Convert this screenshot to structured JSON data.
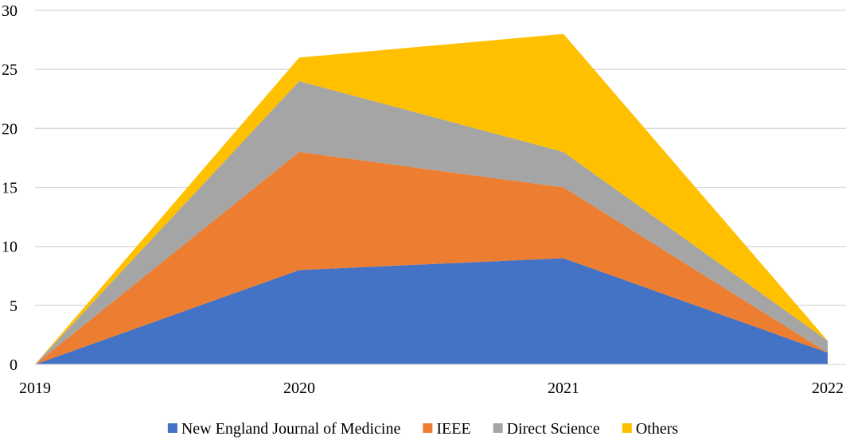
{
  "chart_data": {
    "type": "area",
    "stacked": true,
    "categories": [
      "2019",
      "2020",
      "2021",
      "2022"
    ],
    "series": [
      {
        "name": "New England Journal of Medicine",
        "color": "#4472c4",
        "values": [
          0,
          8,
          9,
          1
        ]
      },
      {
        "name": "IEEE",
        "color": "#ed7d31",
        "values": [
          0,
          10,
          6,
          0
        ]
      },
      {
        "name": "Direct Science",
        "color": "#a5a5a5",
        "values": [
          0,
          6,
          3,
          1
        ]
      },
      {
        "name": "Others",
        "color": "#ffc000",
        "values": [
          0,
          2,
          10,
          0
        ]
      }
    ],
    "ylim": [
      0,
      30
    ],
    "yticks": [
      0,
      5,
      10,
      15,
      20,
      25,
      30
    ],
    "grid": true,
    "legend": "bottom",
    "title": "",
    "xlabel": "",
    "ylabel": ""
  }
}
